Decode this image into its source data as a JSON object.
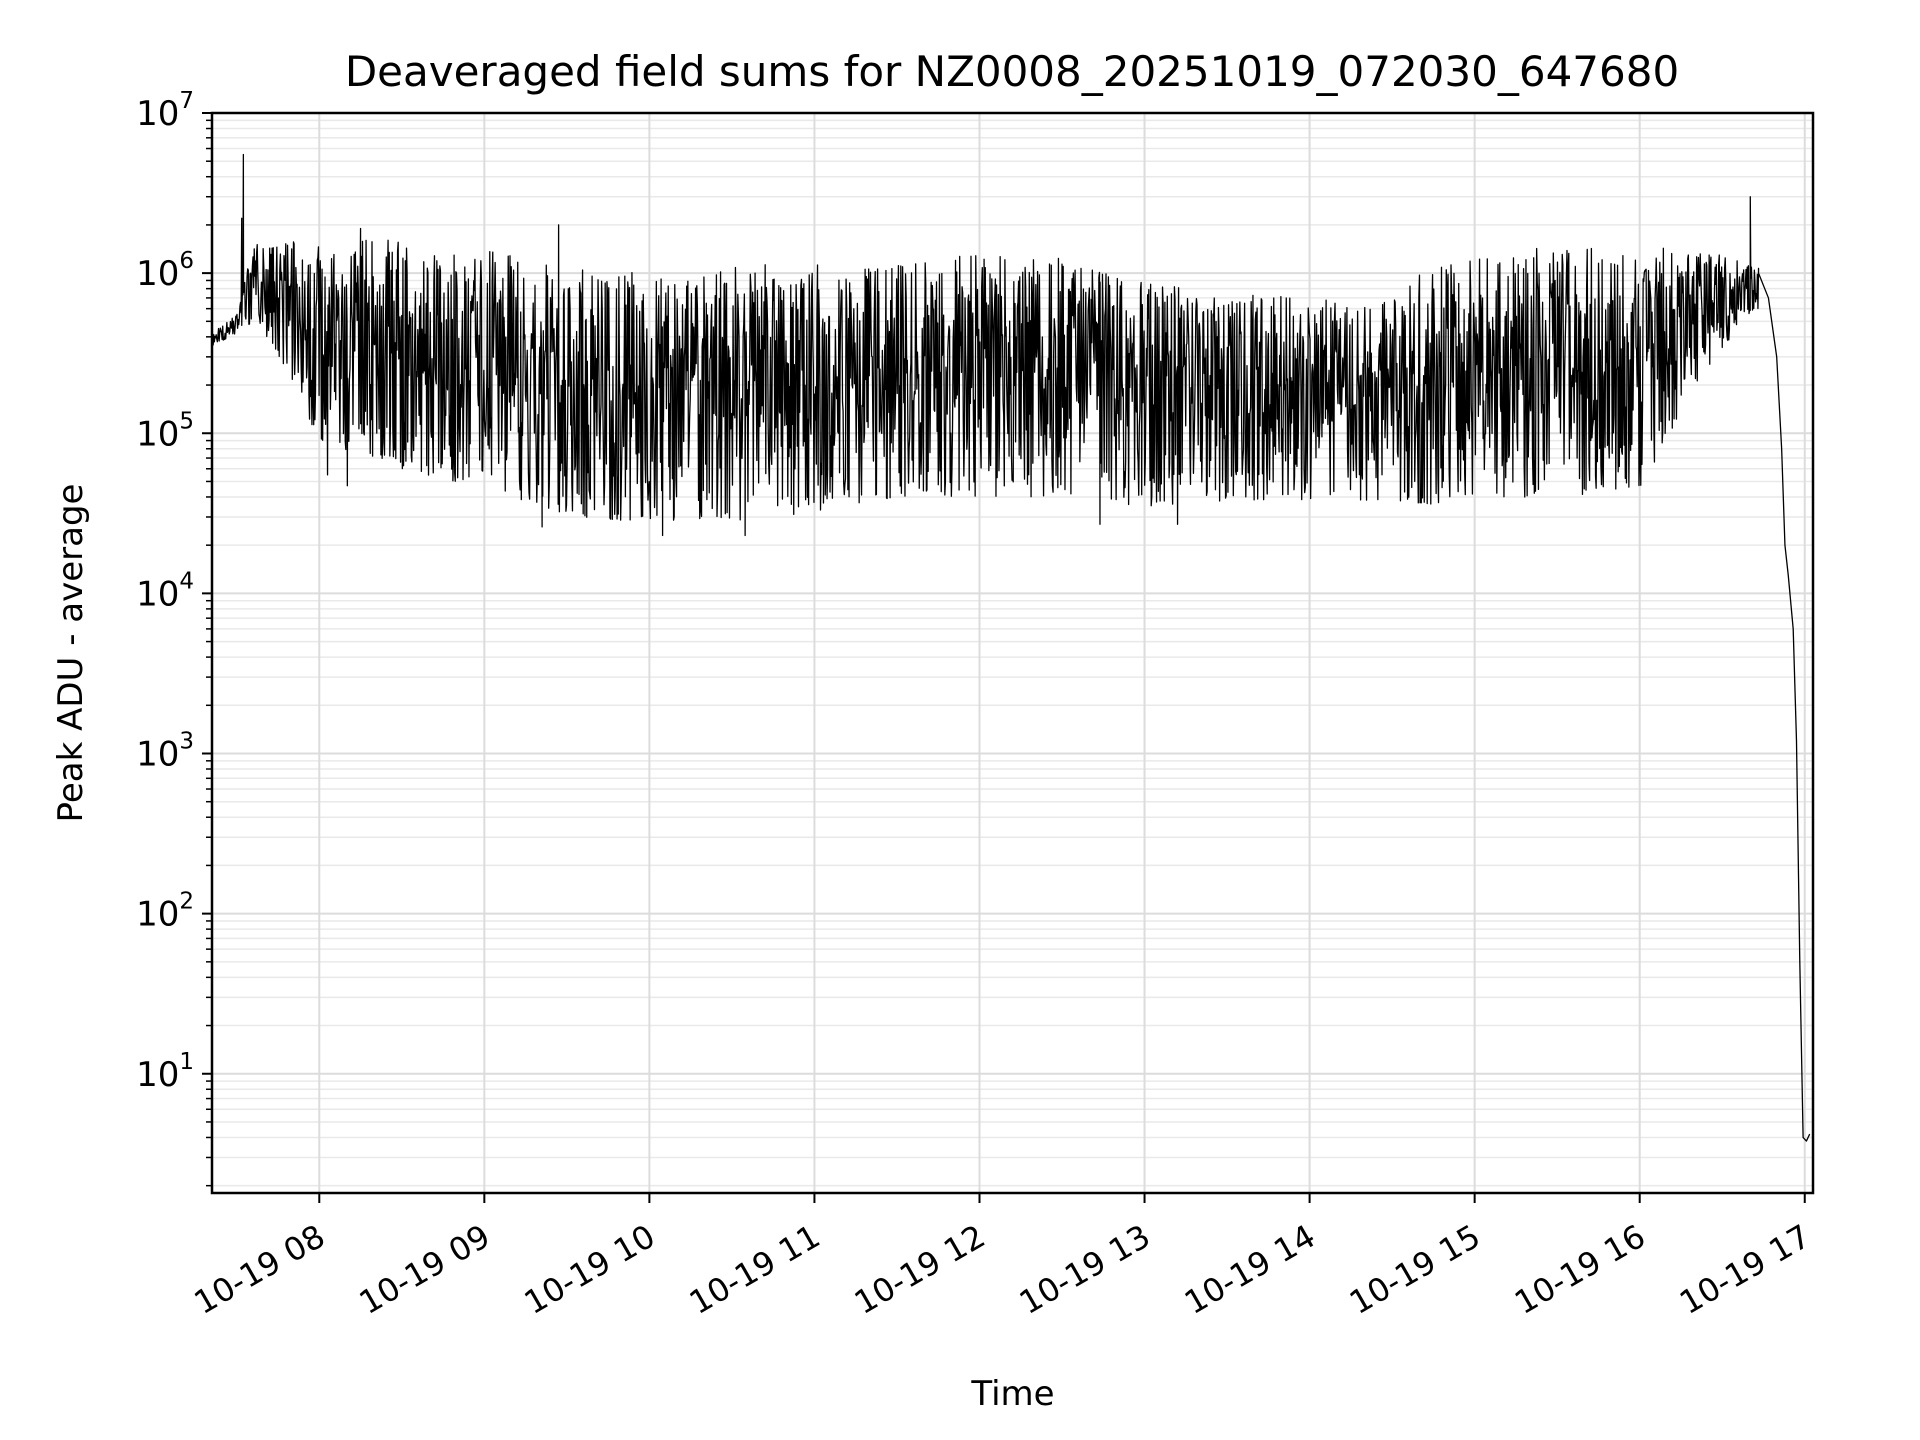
{
  "chart_data": {
    "type": "line",
    "title": "Deaveraged field sums for NZ0008_20251019_072030_647680",
    "xlabel": "Time",
    "ylabel": "Peak ADU - average",
    "yscale": "log",
    "grid": true,
    "ylim": [
      1.8,
      10000000
    ],
    "xlim_hours": [
      7.35,
      17.05
    ],
    "x_ticks": [
      {
        "hour": 8,
        "label": "10-19 08"
      },
      {
        "hour": 9,
        "label": "10-19 09"
      },
      {
        "hour": 10,
        "label": "10-19 10"
      },
      {
        "hour": 11,
        "label": "10-19 11"
      },
      {
        "hour": 12,
        "label": "10-19 12"
      },
      {
        "hour": 13,
        "label": "10-19 13"
      },
      {
        "hour": 14,
        "label": "10-19 14"
      },
      {
        "hour": 15,
        "label": "10-19 15"
      },
      {
        "hour": 16,
        "label": "10-19 16"
      },
      {
        "hour": 17,
        "label": "10-19 17"
      }
    ],
    "y_ticks": [
      {
        "exp": 1,
        "base": "10",
        "sup": "1"
      },
      {
        "exp": 2,
        "base": "10",
        "sup": "2"
      },
      {
        "exp": 3,
        "base": "10",
        "sup": "3"
      },
      {
        "exp": 4,
        "base": "10",
        "sup": "4"
      },
      {
        "exp": 5,
        "base": "10",
        "sup": "5"
      },
      {
        "exp": 6,
        "base": "10",
        "sup": "6"
      },
      {
        "exp": 7,
        "base": "10",
        "sup": "7"
      }
    ],
    "series": [
      {
        "name": "field sum",
        "color": "#000000",
        "envelope": [
          {
            "hour": 7.35,
            "lower": 350000,
            "upper": 420000
          },
          {
            "hour": 7.5,
            "lower": 420000,
            "upper": 550000
          },
          {
            "hour": 7.6,
            "lower": 500000,
            "upper": 1500000
          },
          {
            "hour": 7.8,
            "lower": 250000,
            "upper": 1600000
          },
          {
            "hour": 8.0,
            "lower": 90000,
            "upper": 1700000
          },
          {
            "hour": 8.5,
            "lower": 60000,
            "upper": 1600000
          },
          {
            "hour": 9.0,
            "lower": 45000,
            "upper": 1400000
          },
          {
            "hour": 9.5,
            "lower": 30000,
            "upper": 1100000
          },
          {
            "hour": 10.0,
            "lower": 28000,
            "upper": 1000000
          },
          {
            "hour": 10.5,
            "lower": 28000,
            "upper": 1100000
          },
          {
            "hour": 11.0,
            "lower": 32000,
            "upper": 1200000
          },
          {
            "hour": 11.5,
            "lower": 40000,
            "upper": 1200000
          },
          {
            "hour": 12.0,
            "lower": 40000,
            "upper": 1300000
          },
          {
            "hour": 12.5,
            "lower": 40000,
            "upper": 1300000
          },
          {
            "hour": 13.0,
            "lower": 35000,
            "upper": 900000
          },
          {
            "hour": 13.5,
            "lower": 38000,
            "upper": 800000
          },
          {
            "hour": 14.0,
            "lower": 38000,
            "upper": 700000
          },
          {
            "hour": 14.5,
            "lower": 38000,
            "upper": 700000
          },
          {
            "hour": 14.75,
            "lower": 36000,
            "upper": 1300000
          },
          {
            "hour": 15.0,
            "lower": 40000,
            "upper": 1300000
          },
          {
            "hour": 15.5,
            "lower": 40000,
            "upper": 1500000
          },
          {
            "hour": 16.0,
            "lower": 45000,
            "upper": 1500000
          },
          {
            "hour": 16.4,
            "lower": 250000,
            "upper": 1400000
          },
          {
            "hour": 16.7,
            "lower": 600000,
            "upper": 1100000
          }
        ],
        "spikes": [
          {
            "hour": 7.54,
            "value": 5500000
          },
          {
            "hour": 7.53,
            "value": 2200000
          },
          {
            "hour": 9.45,
            "value": 2000000
          },
          {
            "hour": 8.25,
            "value": 1900000
          },
          {
            "hour": 16.67,
            "value": 3000000
          },
          {
            "hour": 8.05,
            "value": 55000
          },
          {
            "hour": 8.17,
            "value": 47000
          },
          {
            "hour": 9.35,
            "value": 26000
          },
          {
            "hour": 10.08,
            "value": 23000
          },
          {
            "hour": 10.58,
            "value": 23000
          },
          {
            "hour": 12.73,
            "value": 27000
          },
          {
            "hour": 13.2,
            "value": 27000
          }
        ],
        "tail": [
          {
            "hour": 16.72,
            "value": 1000000
          },
          {
            "hour": 16.78,
            "value": 700000
          },
          {
            "hour": 16.83,
            "value": 300000
          },
          {
            "hour": 16.86,
            "value": 80000
          },
          {
            "hour": 16.88,
            "value": 20000
          },
          {
            "hour": 16.9,
            "value": 13000
          },
          {
            "hour": 16.93,
            "value": 6000
          },
          {
            "hour": 16.95,
            "value": 1200
          },
          {
            "hour": 16.97,
            "value": 50
          },
          {
            "hour": 16.99,
            "value": 4
          },
          {
            "hour": 17.01,
            "value": 3.8
          },
          {
            "hour": 17.03,
            "value": 4.2
          }
        ]
      }
    ]
  }
}
